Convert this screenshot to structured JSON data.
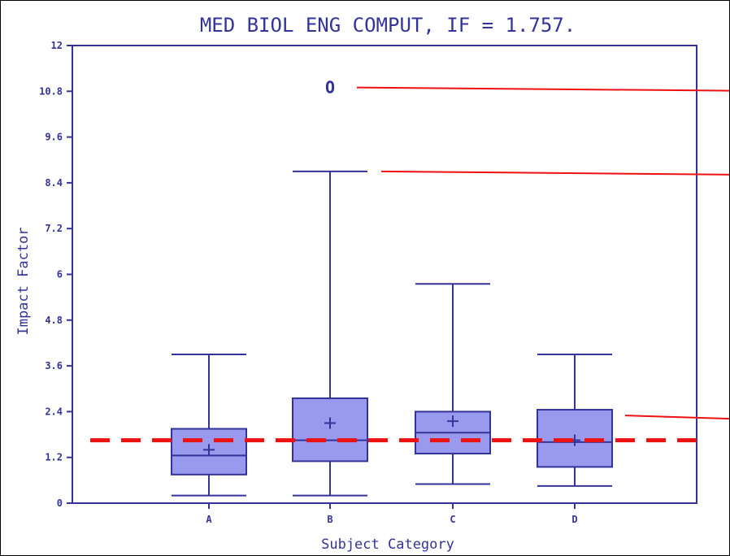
{
  "chart_data": {
    "type": "box",
    "title": "MED BIOL ENG COMPUT, IF = 1.757.",
    "xlabel": "Subject Category",
    "ylabel": "Impact Factor",
    "ylim": [
      0,
      12
    ],
    "yticks": [
      "0",
      "1.2",
      "2.4",
      "3.6",
      "4.8",
      "6",
      "7.2",
      "8.4",
      "9.6",
      "10.8",
      "12"
    ],
    "categories": [
      "A",
      "B",
      "C",
      "D"
    ],
    "boxes": [
      {
        "category": "A",
        "min": 0.2,
        "q1": 0.75,
        "median": 1.25,
        "q3": 1.95,
        "max": 3.9,
        "mean": 1.4
      },
      {
        "category": "B",
        "min": 0.2,
        "q1": 1.1,
        "median": 1.65,
        "q3": 2.75,
        "max": 8.7,
        "mean": 2.1,
        "outliers": [
          10.9
        ]
      },
      {
        "category": "C",
        "min": 0.5,
        "q1": 1.3,
        "median": 1.85,
        "q3": 2.4,
        "max": 5.75,
        "mean": 2.15
      },
      {
        "category": "D",
        "min": 0.45,
        "q1": 0.95,
        "median": 1.6,
        "q3": 2.45,
        "max": 3.9,
        "mean": 1.65
      }
    ],
    "outlier_marker": "O",
    "reference_line": {
      "value": 1.65,
      "style": "dashed",
      "color": "#ee1111"
    },
    "annotation_lines": [
      10.9,
      8.7,
      2.3
    ],
    "grid": false,
    "colors": {
      "axis": "#333399",
      "box_fill": "#9999ee",
      "annotation": "#ee1111"
    }
  }
}
